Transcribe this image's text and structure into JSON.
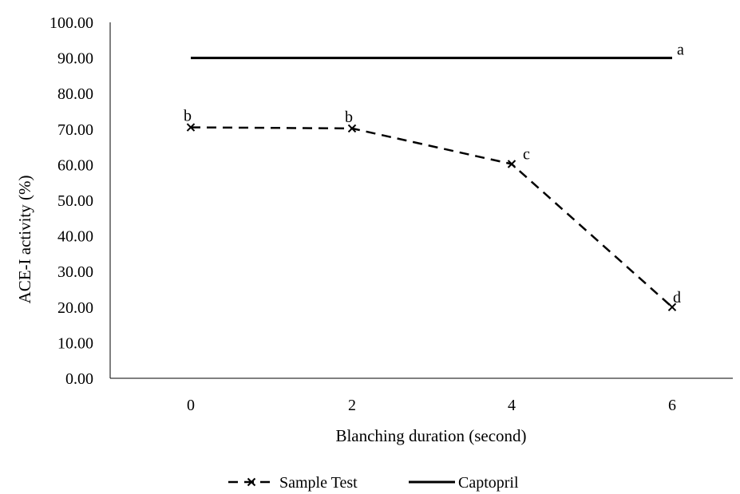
{
  "chart_data": {
    "type": "line",
    "xlabel": "Blanching duration (second)",
    "ylabel": "ACE-I activity (%)",
    "ylim": [
      0,
      100
    ],
    "yticks": [
      "0.00",
      "10.00",
      "20.00",
      "30.00",
      "40.00",
      "50.00",
      "60.00",
      "70.00",
      "80.00",
      "90.00",
      "100.00"
    ],
    "categories": [
      "0",
      "2",
      "4",
      "6"
    ],
    "grid": false,
    "legend_position": "bottom",
    "series": [
      {
        "name": "Sample Test",
        "style": "dashed",
        "marker": "x",
        "color": "#000000",
        "values": [
          70.5,
          70.2,
          60.2,
          20.0
        ],
        "labels": [
          "b",
          "b",
          "c",
          "d"
        ]
      },
      {
        "name": "Captopril",
        "style": "solid",
        "marker": "none",
        "color": "#000000",
        "values": [
          90.0,
          90.0,
          90.0,
          90.0
        ],
        "labels": [
          "",
          "",
          "",
          "a"
        ]
      }
    ]
  }
}
